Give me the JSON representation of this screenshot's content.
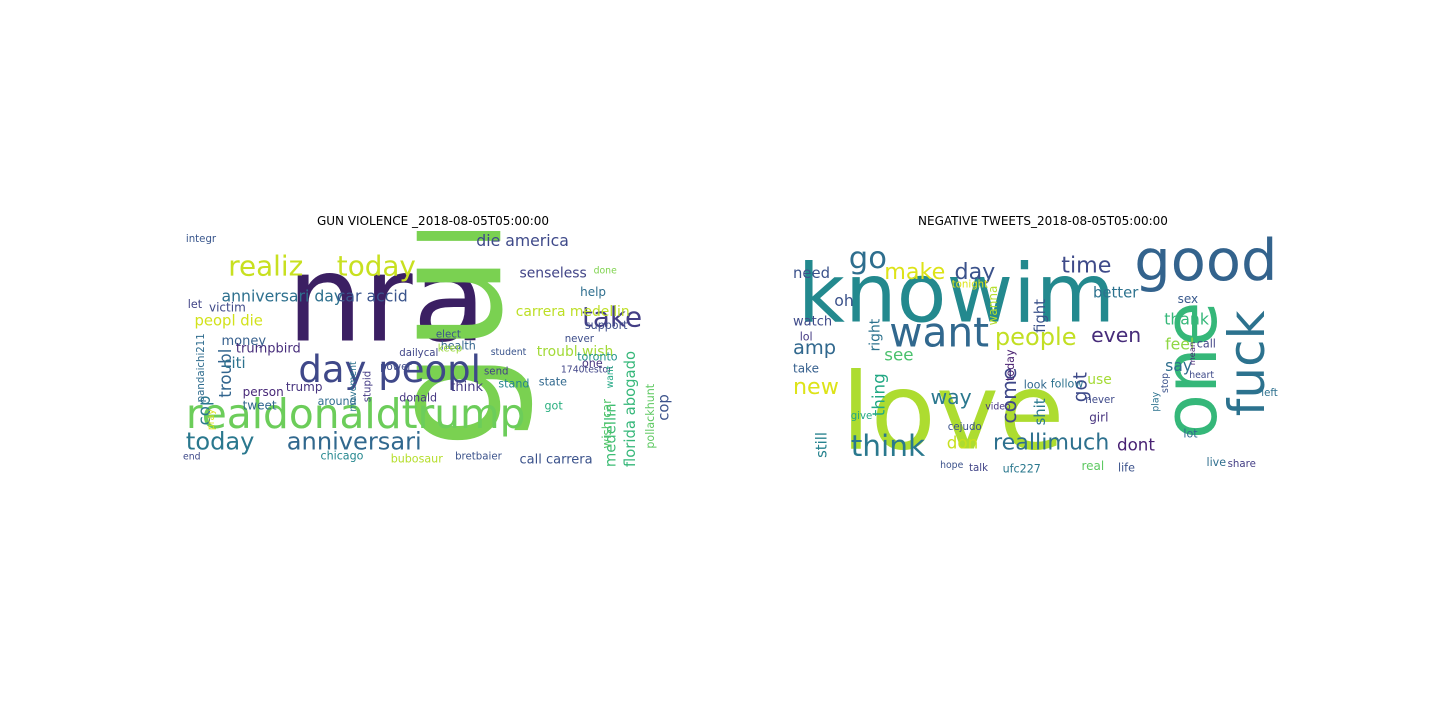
{
  "panels": [
    {
      "title": "GUN VIOLENCE _2018-08-05T05:00:00",
      "words": [
        {
          "text": "nra",
          "color": "#3b1f63"
        },
        {
          "text": "gun",
          "color": "#7ad151"
        },
        {
          "text": "realdonaldtrump",
          "color": "#6ccd5a"
        },
        {
          "text": "day peopl",
          "color": "#3f4889"
        },
        {
          "text": "realiz",
          "color": "#c8e020"
        },
        {
          "text": "today",
          "color": "#c8e020"
        },
        {
          "text": "take",
          "color": "#433e85"
        },
        {
          "text": "today",
          "color": "#2a788e"
        },
        {
          "text": "anniversari",
          "color": "#31688e"
        },
        {
          "text": "anniversari day",
          "color": "#2d708e"
        },
        {
          "text": "car accid",
          "color": "#3a548c"
        },
        {
          "text": "die america",
          "color": "#3e4989"
        },
        {
          "text": "senseless",
          "color": "#414487"
        },
        {
          "text": "carrera medellin",
          "color": "#bddf26"
        },
        {
          "text": "troubl wish",
          "color": "#a2da37"
        },
        {
          "text": "florida abogado",
          "color": "#35b779"
        },
        {
          "text": "medellin",
          "color": "#3dbc74"
        },
        {
          "text": "cop",
          "color": "#3b528b"
        },
        {
          "text": "cop",
          "color": "#2a788e"
        },
        {
          "text": "troubl",
          "color": "#32658e"
        },
        {
          "text": "peopl die",
          "color": "#d2e21b"
        },
        {
          "text": "money",
          "color": "#355f8d"
        },
        {
          "text": "citi",
          "color": "#2c728e"
        },
        {
          "text": "trumpbird",
          "color": "#472d7b"
        },
        {
          "text": "person",
          "color": "#482878"
        },
        {
          "text": "tweet",
          "color": "#31688e"
        },
        {
          "text": "trump",
          "color": "#46337e"
        },
        {
          "text": "call carrera",
          "color": "#3b528b"
        },
        {
          "text": "help",
          "color": "#2e6e8e"
        },
        {
          "text": "health",
          "color": "#33638d"
        },
        {
          "text": "support",
          "color": "#3e4c8a"
        },
        {
          "text": "never",
          "color": "#3d4d8a"
        },
        {
          "text": "wish car",
          "color": "#52c569"
        },
        {
          "text": "pollackhunt",
          "color": "#5ec962"
        },
        {
          "text": "toronto",
          "color": "#20928c"
        },
        {
          "text": "think",
          "color": "#443a83"
        },
        {
          "text": "stand",
          "color": "#25858e"
        },
        {
          "text": "state",
          "color": "#31688e"
        },
        {
          "text": "got",
          "color": "#29af7f"
        },
        {
          "text": "keep",
          "color": "#9bd93c"
        },
        {
          "text": "elect",
          "color": "#3b528b"
        },
        {
          "text": "dailycal",
          "color": "#404688"
        },
        {
          "text": "power",
          "color": "#3e4a89"
        },
        {
          "text": "stupid",
          "color": "#443b84"
        },
        {
          "text": "movement",
          "color": "#2c728e"
        },
        {
          "text": "donald",
          "color": "#453781"
        },
        {
          "text": "around",
          "color": "#2f6c8e"
        },
        {
          "text": "chicago",
          "color": "#24878e"
        },
        {
          "text": "bubosaur",
          "color": "#b5de2b"
        },
        {
          "text": "bretbaier",
          "color": "#3b528b"
        },
        {
          "text": "pandaichi211",
          "color": "#2f6c8e"
        },
        {
          "text": "victim",
          "color": "#3e4989"
        },
        {
          "text": "let",
          "color": "#414487"
        },
        {
          "text": "integr",
          "color": "#39568c"
        },
        {
          "text": "end",
          "color": "#3e4989"
        },
        {
          "text": "pray",
          "color": "#d8e219"
        },
        {
          "text": "one",
          "color": "#46327e"
        },
        {
          "text": "send",
          "color": "#424086"
        },
        {
          "text": "student",
          "color": "#3a548c"
        },
        {
          "text": "done",
          "color": "#7fd34e"
        },
        {
          "text": "1740testor",
          "color": "#404588"
        },
        {
          "text": "want",
          "color": "#22a884"
        }
      ]
    },
    {
      "title": "NEGATIVE TWEETS_2018-08-05T05:00:00",
      "words": [
        {
          "text": "love",
          "color": "#addc30"
        },
        {
          "text": "knowim",
          "color": "#23898e"
        },
        {
          "text": "good",
          "color": "#33638d"
        },
        {
          "text": "one",
          "color": "#35b779"
        },
        {
          "text": "fuck",
          "color": "#2c728e"
        },
        {
          "text": "want",
          "color": "#31688e"
        },
        {
          "text": "think",
          "color": "#2a788e"
        },
        {
          "text": "reallimuch",
          "color": "#2d708e"
        },
        {
          "text": "go",
          "color": "#2e6e8e"
        },
        {
          "text": "make",
          "color": "#dde318"
        },
        {
          "text": "day",
          "color": "#3b528b"
        },
        {
          "text": "time",
          "color": "#3e4a89"
        },
        {
          "text": "people",
          "color": "#c2df23"
        },
        {
          "text": "even",
          "color": "#472c7a"
        },
        {
          "text": "amp",
          "color": "#31688e"
        },
        {
          "text": "new",
          "color": "#dde318"
        },
        {
          "text": "way",
          "color": "#2a788e"
        },
        {
          "text": "need",
          "color": "#3b528b"
        },
        {
          "text": "better",
          "color": "#2c728e"
        },
        {
          "text": "thank",
          "color": "#35b779"
        },
        {
          "text": "feel",
          "color": "#8fd744"
        },
        {
          "text": "say",
          "color": "#2e6e8e"
        },
        {
          "text": "got",
          "color": "#3e4a89"
        },
        {
          "text": "use",
          "color": "#a5db36"
        },
        {
          "text": "dont",
          "color": "#482173"
        },
        {
          "text": "don",
          "color": "#c8e020"
        },
        {
          "text": "come",
          "color": "#3f4889"
        },
        {
          "text": "fight",
          "color": "#3b528b"
        },
        {
          "text": "right",
          "color": "#2c728e"
        },
        {
          "text": "see",
          "color": "#4ac16d"
        },
        {
          "text": "still",
          "color": "#26828e"
        },
        {
          "text": "thing",
          "color": "#22a884"
        },
        {
          "text": "shit",
          "color": "#2a788e"
        },
        {
          "text": "watch",
          "color": "#3e4a89"
        },
        {
          "text": "oh",
          "color": "#3b528b"
        },
        {
          "text": "lol",
          "color": "#443a83"
        },
        {
          "text": "take",
          "color": "#355f8d"
        },
        {
          "text": "call",
          "color": "#414487"
        },
        {
          "text": "sex",
          "color": "#38598c"
        },
        {
          "text": "girl",
          "color": "#46337e"
        },
        {
          "text": "look",
          "color": "#31688e"
        },
        {
          "text": "follow",
          "color": "#2c728e"
        },
        {
          "text": "video",
          "color": "#453581"
        },
        {
          "text": "today",
          "color": "#481f70"
        },
        {
          "text": "never",
          "color": "#3e4989"
        },
        {
          "text": "ufc227",
          "color": "#2a788e"
        },
        {
          "text": "talk",
          "color": "#414487"
        },
        {
          "text": "wanna",
          "color": "#b5de2b"
        },
        {
          "text": "tonight",
          "color": "#dde318"
        },
        {
          "text": "life",
          "color": "#3b528b"
        },
        {
          "text": "live",
          "color": "#2e6e8e"
        },
        {
          "text": "share",
          "color": "#433e85"
        },
        {
          "text": "give",
          "color": "#22a884"
        },
        {
          "text": "hope",
          "color": "#3b528b"
        },
        {
          "text": "real",
          "color": "#5ec962"
        },
        {
          "text": "heart",
          "color": "#3e4a89"
        },
        {
          "text": "play",
          "color": "#2c728e"
        },
        {
          "text": "mean",
          "color": "#482878"
        },
        {
          "text": "cejudo",
          "color": "#3b528b"
        },
        {
          "text": "lot",
          "color": "#31688e"
        },
        {
          "text": "left",
          "color": "#2d708e"
        },
        {
          "text": "stop",
          "color": "#3b528b"
        }
      ]
    }
  ]
}
